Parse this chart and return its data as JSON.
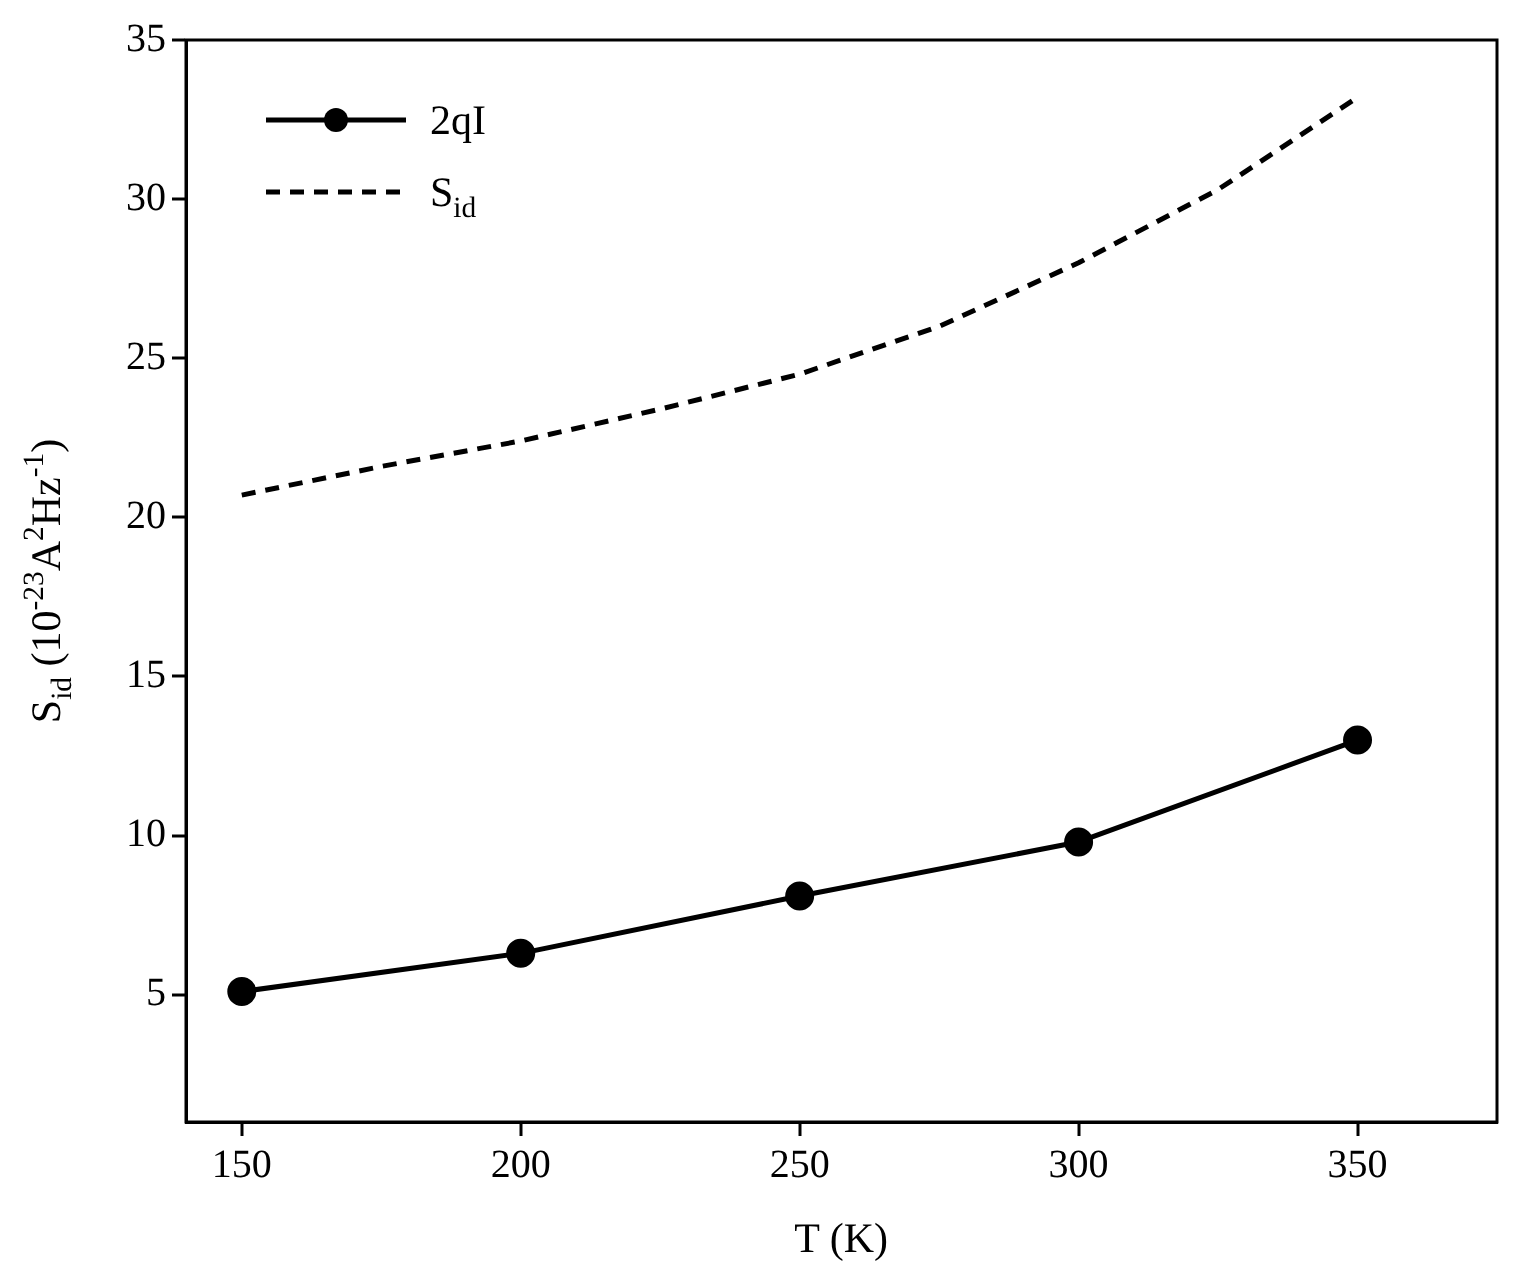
{
  "chart_data": {
    "type": "line",
    "xlabel": "T (K)",
    "ylabel": "S$_{id}$ (10$^{-23}$A$^{2}$Hz$^{-1}$)",
    "x": [
      150,
      200,
      250,
      300,
      350
    ],
    "xlim": [
      140,
      375
    ],
    "xticks": [
      150,
      200,
      250,
      300,
      350
    ],
    "ylim": [
      1,
      35
    ],
    "yticks": [
      5,
      10,
      15,
      20,
      25,
      30,
      35
    ],
    "grid": false,
    "legend": "top left",
    "series": [
      {
        "name": "2qI",
        "color": "#000000",
        "values": [
          5.1,
          6.3,
          8.1,
          9.8,
          13.0
        ],
        "marker": "circle",
        "line_style": "solid"
      },
      {
        "name": "S$_{id}$",
        "color": "#000000",
        "x": [
          150,
          175,
          200,
          225,
          250,
          275,
          300,
          325,
          350
        ],
        "values": [
          20.7,
          21.6,
          22.4,
          23.4,
          24.5,
          26.0,
          28.0,
          30.3,
          33.2
        ],
        "marker": "none",
        "line_style": "dashed"
      }
    ]
  }
}
